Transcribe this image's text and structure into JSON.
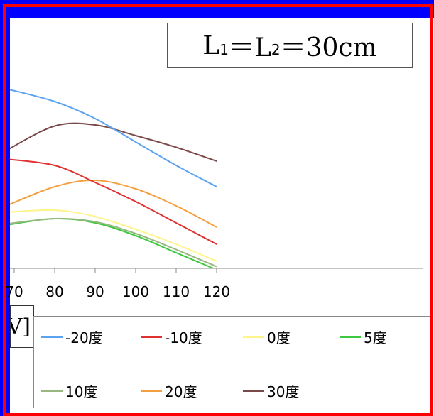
{
  "chart_data": {
    "type": "line",
    "title": "L₁＝L₂＝30cm",
    "title_parts": {
      "l1": "L",
      "s1": "1",
      "eq1": "＝L",
      "s2": "2",
      "rest": "＝30cm"
    },
    "ylabel_fragment": "V]",
    "xlim": [
      68,
      121
    ],
    "x_ticks": [
      "70",
      "80",
      "90",
      "100",
      "110",
      "120"
    ],
    "grid": false,
    "legend_position": "bottom",
    "series": [
      {
        "name": "-20度",
        "color": "#5ba3f0",
        "x": [
          68,
          80,
          90,
          100,
          110,
          120
        ],
        "y": [
          0.9,
          0.78,
          0.62,
          0.4,
          0.18,
          -0.02
        ]
      },
      {
        "name": "-10度",
        "color": "#e03030",
        "x": [
          68,
          80,
          90,
          100,
          110,
          120
        ],
        "y": [
          0.24,
          0.18,
          0.02,
          -0.16,
          -0.36,
          -0.56
        ]
      },
      {
        "name": "0度",
        "color": "#fdf48c",
        "x": [
          68,
          80,
          90,
          100,
          110,
          120
        ],
        "y": [
          -0.26,
          -0.24,
          -0.3,
          -0.42,
          -0.56,
          -0.72
        ]
      },
      {
        "name": "5度",
        "color": "#3ec83e",
        "x": [
          68,
          80,
          90,
          100,
          110,
          120
        ],
        "y": [
          -0.38,
          -0.32,
          -0.36,
          -0.48,
          -0.64,
          -0.8
        ]
      },
      {
        "name": "10度",
        "color": "#98b880",
        "x": [
          68,
          80,
          90,
          100,
          110,
          120
        ],
        "y": [
          -0.37,
          -0.32,
          -0.35,
          -0.46,
          -0.61,
          -0.77
        ]
      },
      {
        "name": "20度",
        "color": "#f5a040",
        "x": [
          68,
          80,
          90,
          100,
          110,
          120
        ],
        "y": [
          -0.2,
          -0.02,
          0.04,
          -0.04,
          -0.2,
          -0.4
        ]
      },
      {
        "name": "30度",
        "color": "#7a4a4a",
        "x": [
          68,
          80,
          90,
          100,
          110,
          120
        ],
        "y": [
          0.32,
          0.55,
          0.56,
          0.46,
          0.35,
          0.22
        ]
      }
    ]
  }
}
